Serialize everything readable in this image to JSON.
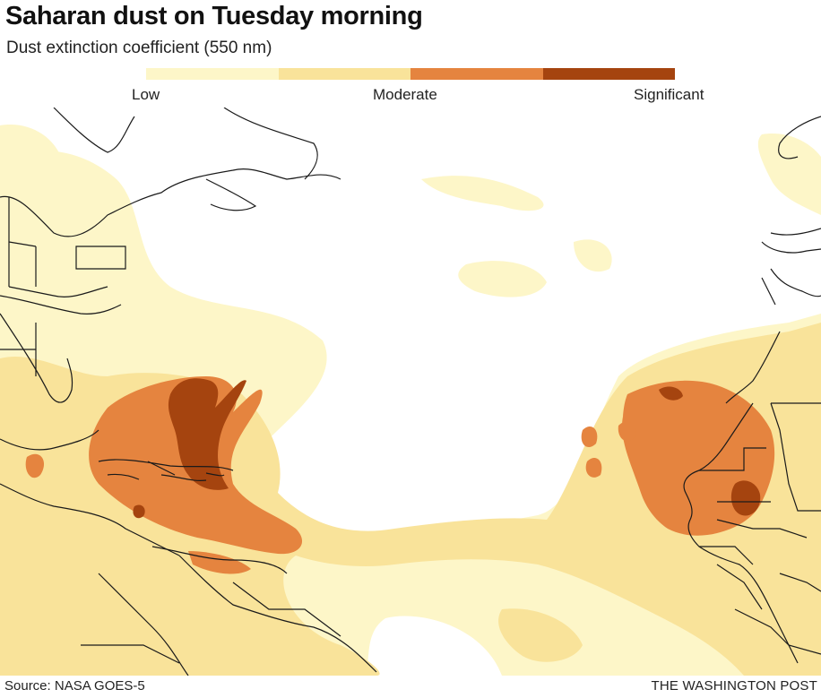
{
  "title": "Saharan dust on Tuesday morning",
  "subtitle": "Dust extinction coefficient (550 nm)",
  "legend": {
    "labels": {
      "low": "Low",
      "moderate": "Moderate",
      "significant": "Significant"
    },
    "colors": [
      "#fdf6c8",
      "#f9e39a",
      "#e5843f",
      "#a5440f"
    ]
  },
  "colors": {
    "land_outline": "#1a1a1a",
    "ocean": "#ffffff"
  },
  "footer": {
    "source": "Source: NASA GOES-5",
    "credit": "THE WASHINGTON POST"
  }
}
